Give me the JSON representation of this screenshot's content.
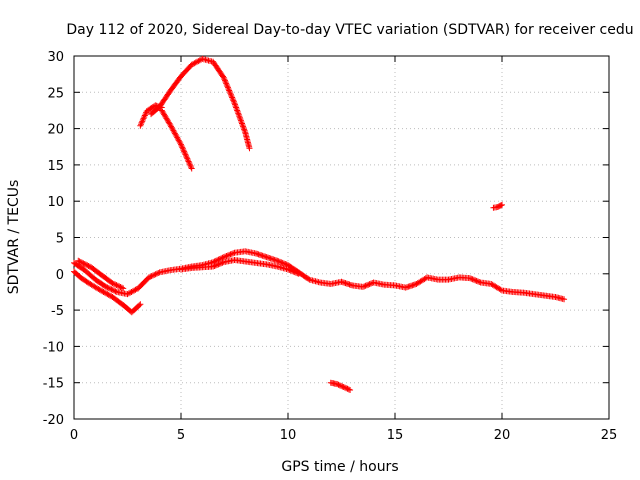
{
  "chart_data": {
    "type": "scatter",
    "title": "Day 112 of 2020, Sidereal Day-to-day VTEC variation (SDTVAR) for receiver cedu",
    "xlabel": "GPS time / hours",
    "ylabel": "SDTVAR / TECUs",
    "xlim": [
      0,
      25
    ],
    "ylim": [
      -20,
      30
    ],
    "grid": true,
    "xticks": [
      0,
      5,
      10,
      15,
      20,
      25
    ],
    "yticks": [
      -20,
      -15,
      -10,
      -5,
      0,
      5,
      10,
      15,
      20,
      25,
      30
    ],
    "series_color": "#ff0000",
    "series": [
      {
        "name": "arc-main-upper",
        "points": [
          [
            0,
            1.5
          ],
          [
            0.5,
            0.5
          ],
          [
            1,
            -0.8
          ],
          [
            1.5,
            -1.8
          ],
          [
            2,
            -2.5
          ],
          [
            2.5,
            -2.8
          ],
          [
            3,
            -2
          ],
          [
            3.5,
            -0.5
          ],
          [
            4,
            0.2
          ],
          [
            4.5,
            0.5
          ],
          [
            5,
            0.7
          ],
          [
            5.5,
            1
          ],
          [
            6,
            1.2
          ],
          [
            6.5,
            1.6
          ],
          [
            7,
            2.3
          ],
          [
            7.5,
            2.9
          ],
          [
            8,
            3.1
          ],
          [
            8.5,
            2.8
          ],
          [
            9,
            2.3
          ],
          [
            9.5,
            1.8
          ],
          [
            10,
            1.2
          ],
          [
            10.5,
            0.2
          ]
        ]
      },
      {
        "name": "arc-main-lower",
        "points": [
          [
            0,
            0.3
          ],
          [
            0.3,
            -0.5
          ],
          [
            0.7,
            -1.3
          ],
          [
            1.2,
            -2.2
          ],
          [
            1.8,
            -3.2
          ],
          [
            2.3,
            -4.3
          ],
          [
            2.7,
            -5.3
          ],
          [
            3.1,
            -4.2
          ]
        ]
      },
      {
        "name": "arc-dip",
        "points": [
          [
            0.2,
            1.8
          ],
          [
            0.8,
            0.9
          ],
          [
            1.3,
            -0.2
          ],
          [
            1.8,
            -1.3
          ],
          [
            2.3,
            -2
          ]
        ]
      },
      {
        "name": "arc-mid",
        "points": [
          [
            5,
            0.6
          ],
          [
            5.5,
            0.8
          ],
          [
            6,
            0.9
          ],
          [
            6.5,
            1
          ],
          [
            7,
            1.6
          ],
          [
            7.5,
            1.9
          ],
          [
            8,
            1.7
          ],
          [
            8.5,
            1.5
          ],
          [
            9,
            1.3
          ],
          [
            9.5,
            1
          ],
          [
            10,
            0.6
          ],
          [
            10.5,
            0
          ]
        ]
      },
      {
        "name": "arc-tail",
        "points": [
          [
            10.5,
            0.2
          ],
          [
            11,
            -0.8
          ],
          [
            11.5,
            -1.2
          ],
          [
            12,
            -1.4
          ],
          [
            12.5,
            -1.1
          ],
          [
            13,
            -1.6
          ],
          [
            13.5,
            -1.8
          ],
          [
            14,
            -1.2
          ],
          [
            14.5,
            -1.5
          ],
          [
            15,
            -1.6
          ],
          [
            15.5,
            -1.9
          ],
          [
            16,
            -1.4
          ],
          [
            16.5,
            -0.5
          ],
          [
            17,
            -0.8
          ],
          [
            17.5,
            -0.8
          ],
          [
            18,
            -0.5
          ],
          [
            18.5,
            -0.6
          ],
          [
            19,
            -1.2
          ],
          [
            19.5,
            -1.4
          ],
          [
            20,
            -2.3
          ],
          [
            20.5,
            -2.5
          ],
          [
            21,
            -2.6
          ],
          [
            21.5,
            -2.8
          ],
          [
            22,
            -3
          ],
          [
            22.5,
            -3.2
          ],
          [
            22.9,
            -3.5
          ]
        ]
      },
      {
        "name": "arc-high-peak",
        "points": [
          [
            3.6,
            22
          ],
          [
            4,
            23
          ],
          [
            4.5,
            25.2
          ],
          [
            5,
            27.2
          ],
          [
            5.5,
            28.8
          ],
          [
            6,
            29.6
          ],
          [
            6.5,
            29.2
          ],
          [
            7,
            27
          ],
          [
            7.5,
            23.5
          ],
          [
            8,
            19.5
          ],
          [
            8.2,
            17.3
          ]
        ]
      },
      {
        "name": "arc-high-left",
        "points": [
          [
            3.1,
            20.4
          ],
          [
            3.4,
            22.4
          ],
          [
            3.8,
            23.2
          ],
          [
            4.1,
            22.9
          ]
        ]
      },
      {
        "name": "arc-high-fall",
        "points": [
          [
            4.1,
            22.5
          ],
          [
            4.5,
            20.5
          ],
          [
            5,
            17.8
          ],
          [
            5.5,
            14.5
          ]
        ]
      },
      {
        "name": "short-10",
        "points": [
          [
            19.6,
            9.1
          ],
          [
            19.8,
            9.2
          ],
          [
            20,
            9.5
          ]
        ]
      },
      {
        "name": "short-neg15",
        "points": [
          [
            12,
            -15
          ],
          [
            12.3,
            -15.2
          ],
          [
            12.6,
            -15.6
          ],
          [
            12.9,
            -16
          ]
        ]
      }
    ]
  }
}
